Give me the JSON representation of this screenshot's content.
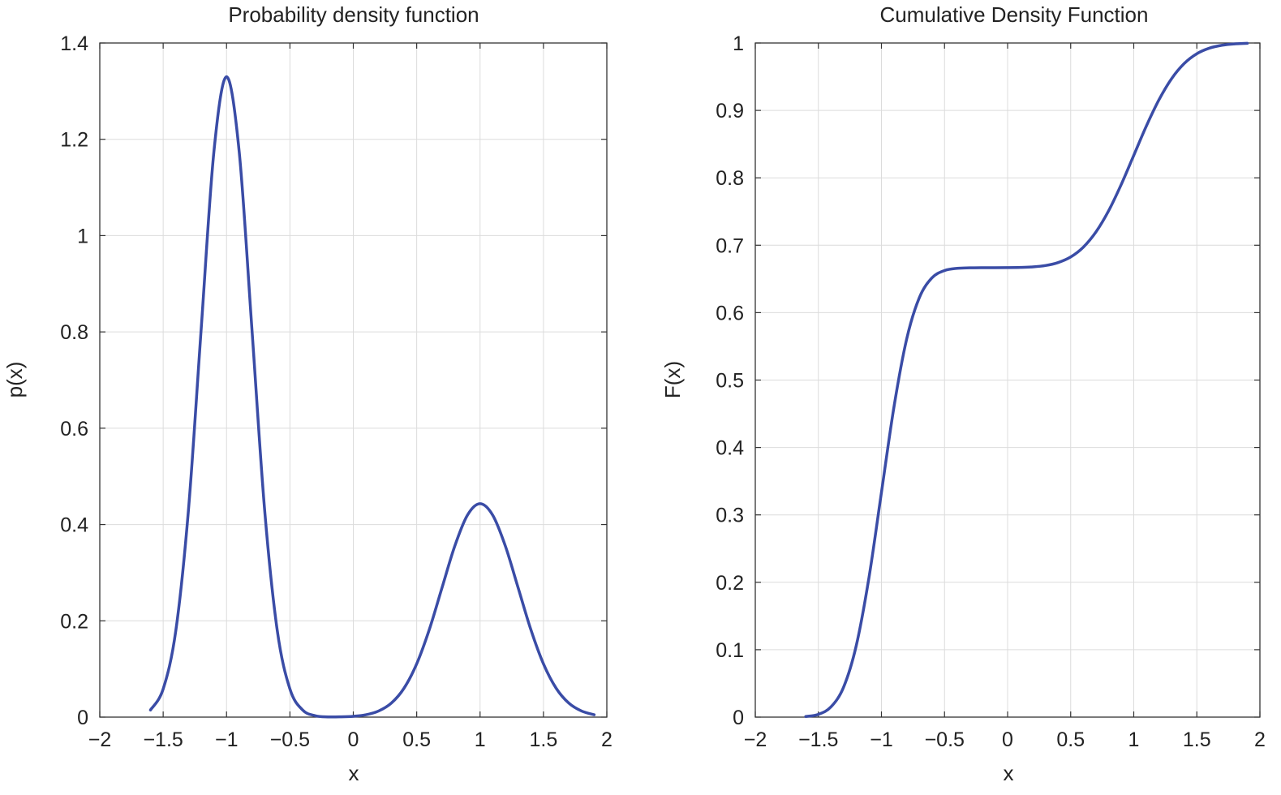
{
  "chart_data": [
    {
      "type": "line",
      "title": "Probability density function",
      "xlabel": "x",
      "ylabel": "p(x)",
      "xlim": [
        -2,
        2
      ],
      "ylim": [
        0,
        1.4
      ],
      "xticks": [
        "−2",
        "−1.5",
        "−1",
        "−0.5",
        "0",
        "0.5",
        "1",
        "1.5",
        "2"
      ],
      "xtick_values": [
        -2,
        -1.5,
        -1,
        -0.5,
        0,
        0.5,
        1,
        1.5,
        2
      ],
      "yticks": [
        "0",
        "0.2",
        "0.4",
        "0.6",
        "0.8",
        "1",
        "1.2",
        "1.4"
      ],
      "ytick_values": [
        0,
        0.2,
        0.4,
        0.6,
        0.8,
        1,
        1.2,
        1.4
      ],
      "grid": true,
      "line_color": "#3a4ca6",
      "x": [
        -1.6,
        -1.5,
        -1.4,
        -1.3,
        -1.2,
        -1.1,
        -1.0,
        -0.9,
        -0.8,
        -0.7,
        -0.6,
        -0.5,
        -0.4,
        -0.3,
        -0.2,
        -0.1,
        0,
        0.1,
        0.2,
        0.3,
        0.4,
        0.5,
        0.6,
        0.7,
        0.8,
        0.9,
        1.0,
        1.1,
        1.2,
        1.3,
        1.4,
        1.5,
        1.6,
        1.7,
        1.8,
        1.9
      ],
      "y": [
        0.0148,
        0.0584,
        0.18,
        0.4317,
        0.8066,
        1.1736,
        1.3298,
        1.1736,
        0.8066,
        0.4317,
        0.18,
        0.0584,
        0.0148,
        0.0029,
        0.0005,
        0.0006,
        0.0017,
        0.0049,
        0.0127,
        0.0291,
        0.06,
        0.1106,
        0.1822,
        0.2689,
        0.3549,
        0.4193,
        0.4433,
        0.4193,
        0.3549,
        0.2689,
        0.1822,
        0.1106,
        0.06,
        0.0291,
        0.0127,
        0.0049
      ]
    },
    {
      "type": "line",
      "title": "Cumulative Density Function",
      "xlabel": "x",
      "ylabel": "F(x)",
      "xlim": [
        -2,
        2
      ],
      "ylim": [
        0,
        1
      ],
      "xticks": [
        "−2",
        "−1.5",
        "−1",
        "−0.5",
        "0",
        "0.5",
        "1",
        "1.5",
        "2"
      ],
      "xtick_values": [
        -2,
        -1.5,
        -1,
        -0.5,
        0,
        0.5,
        1,
        1.5,
        2
      ],
      "yticks": [
        "0",
        "0.1",
        "0.2",
        "0.3",
        "0.4",
        "0.5",
        "0.6",
        "0.7",
        "0.8",
        "0.9",
        "1"
      ],
      "ytick_values": [
        0,
        0.1,
        0.2,
        0.3,
        0.4,
        0.5,
        0.6,
        0.7,
        0.8,
        0.9,
        1
      ],
      "grid": true,
      "line_color": "#3a4ca6",
      "x": [
        -1.6,
        -1.5,
        -1.4,
        -1.3,
        -1.2,
        -1.1,
        -1.0,
        -0.9,
        -0.8,
        -0.7,
        -0.6,
        -0.5,
        -0.4,
        -0.3,
        -0.2,
        -0.1,
        0,
        0.1,
        0.2,
        0.3,
        0.4,
        0.5,
        0.6,
        0.7,
        0.8,
        0.9,
        1.0,
        1.1,
        1.2,
        1.3,
        1.4,
        1.5,
        1.6,
        1.7,
        1.8,
        1.9
      ],
      "y": [
        0.0009,
        0.0041,
        0.0152,
        0.0445,
        0.1058,
        0.2057,
        0.3333,
        0.461,
        0.5609,
        0.6221,
        0.6515,
        0.6625,
        0.6658,
        0.6665,
        0.6667,
        0.6667,
        0.6668,
        0.6671,
        0.6679,
        0.6699,
        0.6743,
        0.6826,
        0.6971,
        0.7196,
        0.7508,
        0.7898,
        0.8333,
        0.8769,
        0.9158,
        0.9471,
        0.9696,
        0.9841,
        0.9924,
        0.9967,
        0.9987,
        0.9995
      ]
    }
  ]
}
